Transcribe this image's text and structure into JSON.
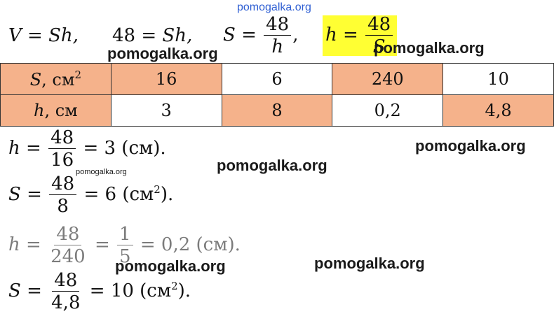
{
  "watermark": "pomogalka.org",
  "colors": {
    "cell_fill": "#f5b28b",
    "highlight": "#ffff33",
    "top_watermark": "#2f5fd3"
  },
  "top_formulas": {
    "f1_lhs": "V",
    "f1_eq": "=",
    "f1_rhs": "Sh,",
    "f2_num": "48",
    "f2_eq": "=",
    "f2_rhs": "Sh,",
    "f3_lhs": "S",
    "f3_eq": "=",
    "f3_num": "48",
    "f3_den": "h",
    "f3_tail": ",",
    "f4_lhs": "h",
    "f4_eq": "=",
    "f4_num": "48",
    "f4_den": "S"
  },
  "table": {
    "rows": [
      {
        "label_var": "S",
        "label_unit": ", см",
        "label_sup": "2",
        "cells": [
          "16",
          "6",
          "240",
          "10"
        ],
        "shaded": [
          true,
          false,
          true,
          false
        ]
      },
      {
        "label_var": "h",
        "label_unit": ", см",
        "label_sup": "",
        "cells": [
          "3",
          "8",
          "0,2",
          "4,8"
        ],
        "shaded": [
          false,
          true,
          false,
          true
        ]
      }
    ]
  },
  "equations": [
    {
      "lhs": "h",
      "num": "48",
      "den": "16",
      "rest": "= 3 (см)."
    },
    {
      "lhs": "S",
      "num": "48",
      "den": "8",
      "rest_pre": "= 6 (см",
      "rest_sup": "2",
      "rest_post": ")."
    },
    {
      "lhs": "h",
      "num": "48",
      "den": "240",
      "mid": "=",
      "num2": "1",
      "den2": "5",
      "rest": "= 0,2 (см)."
    },
    {
      "lhs": "S",
      "num": "48",
      "den": "4,8",
      "rest_pre": "= 10 (см",
      "rest_sup": "2",
      "rest_post": ")."
    }
  ]
}
